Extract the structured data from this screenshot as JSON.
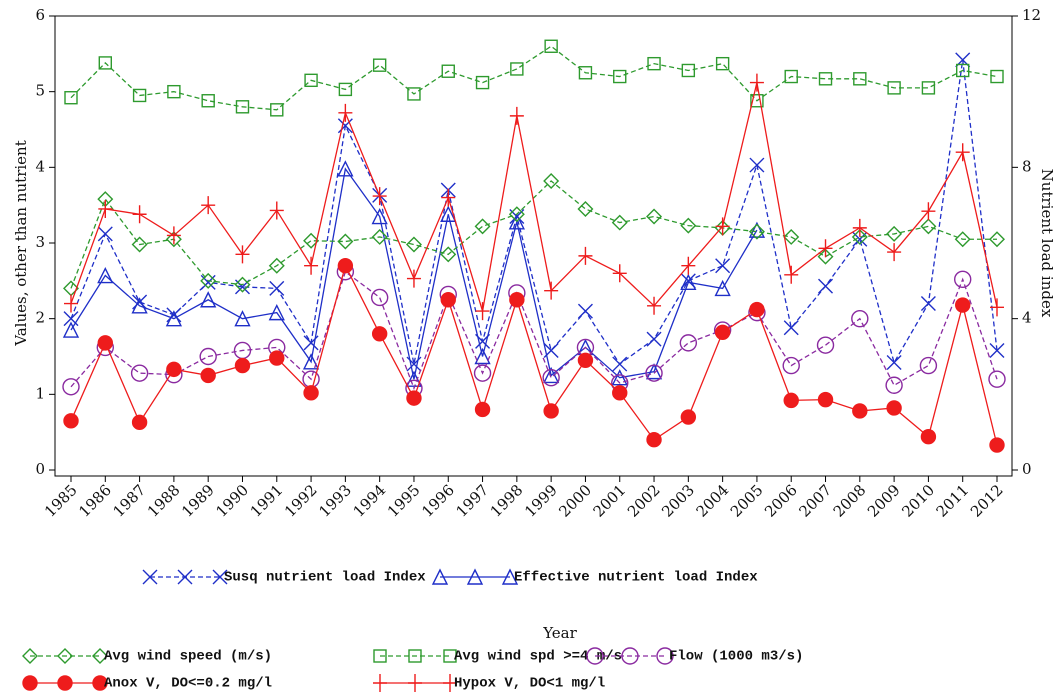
{
  "chart_data": {
    "type": "line",
    "x_label": "Year",
    "y_label": "Values, other than nutrient",
    "y2_label": "Nutrient load index",
    "categories": [
      "1985",
      "1986",
      "1987",
      "1988",
      "1989",
      "1990",
      "1991",
      "1992",
      "1993",
      "1994",
      "1995",
      "1996",
      "1997",
      "1998",
      "1999",
      "2000",
      "2001",
      "2002",
      "2003",
      "2004",
      "2005",
      "2006",
      "2007",
      "2008",
      "2009",
      "2010",
      "2011",
      "2012"
    ],
    "ylim": [
      0,
      6
    ],
    "yticks": [
      0,
      1,
      2,
      3,
      4,
      5,
      6
    ],
    "y2lim": [
      0,
      12
    ],
    "y2ticks": [
      0,
      4,
      8,
      12
    ],
    "series": [
      {
        "name": "Susq nutrient load Index",
        "color": "#1f2fc8",
        "marker": "x",
        "dashed": true,
        "axis": "y2",
        "values": [
          4.0,
          6.24,
          4.44,
          4.1,
          4.96,
          4.84,
          4.8,
          3.36,
          9.1,
          7.26,
          2.8,
          7.4,
          3.4,
          6.7,
          3.16,
          4.2,
          2.8,
          3.46,
          5.0,
          5.4,
          8.06,
          3.76,
          4.86,
          6.1,
          2.84,
          4.4,
          10.84,
          3.16
        ]
      },
      {
        "name": "Effective nutrient load Index",
        "color": "#1f2fc8",
        "marker": "triangle",
        "dashed": false,
        "axis": "y2",
        "values": [
          3.7,
          5.14,
          4.34,
          4.0,
          4.5,
          4.0,
          4.16,
          2.86,
          7.96,
          6.7,
          2.4,
          6.76,
          3.0,
          6.56,
          2.5,
          3.24,
          2.44,
          2.6,
          4.96,
          4.8,
          6.34,
          null,
          null,
          null,
          null,
          null,
          null,
          null
        ]
      },
      {
        "name": "Avg wind speed (m/s)",
        "color": "#2e9a2e",
        "marker": "diamond",
        "dashed": true,
        "values": [
          2.4,
          3.58,
          2.98,
          3.05,
          2.5,
          2.45,
          2.7,
          3.03,
          3.02,
          3.08,
          2.98,
          2.85,
          3.22,
          3.38,
          3.82,
          3.45,
          3.27,
          3.35,
          3.23,
          3.2,
          3.15,
          3.08,
          2.82,
          3.08,
          3.12,
          3.22,
          3.05,
          3.05
        ]
      },
      {
        "name": "Avg wind spd >=4 m/s",
        "color": "#2e9a2e",
        "marker": "square",
        "dashed": true,
        "values": [
          4.92,
          5.38,
          4.95,
          5.0,
          4.88,
          4.8,
          4.76,
          5.15,
          5.03,
          5.35,
          4.97,
          5.27,
          5.12,
          5.3,
          5.6,
          5.25,
          5.2,
          5.37,
          5.28,
          5.37,
          4.88,
          5.2,
          5.17,
          5.17,
          5.05,
          5.05,
          5.28,
          5.2
        ]
      },
      {
        "name": "Flow (1000 m3/s)",
        "color": "#8a2aa0",
        "marker": "circle",
        "dashed": true,
        "values": [
          1.1,
          1.62,
          1.28,
          1.26,
          1.5,
          1.58,
          1.62,
          1.2,
          2.62,
          2.28,
          1.08,
          2.32,
          1.28,
          2.34,
          1.22,
          1.62,
          1.15,
          1.28,
          1.68,
          1.85,
          2.08,
          1.38,
          1.65,
          2.0,
          1.12,
          1.38,
          2.52,
          1.2
        ]
      },
      {
        "name": "Anox V, DO<=0.2 mg/l",
        "color": "#ee1c1c",
        "marker": "dot",
        "dashed": false,
        "values": [
          0.65,
          1.68,
          0.63,
          1.33,
          1.25,
          1.38,
          1.48,
          1.02,
          2.7,
          1.8,
          0.95,
          2.25,
          0.8,
          2.25,
          0.78,
          1.45,
          1.02,
          0.4,
          0.7,
          1.82,
          2.12,
          0.92,
          0.93,
          0.78,
          0.82,
          0.44,
          2.18,
          0.33
        ]
      },
      {
        "name": "Hypox V, DO<1 mg/l",
        "color": "#ee1c1c",
        "marker": "plus",
        "dashed": false,
        "values": [
          2.2,
          3.45,
          3.38,
          3.1,
          3.5,
          2.85,
          3.43,
          2.7,
          4.72,
          3.62,
          2.53,
          3.6,
          2.1,
          4.68,
          2.37,
          2.83,
          2.6,
          2.17,
          2.7,
          3.22,
          5.12,
          2.58,
          2.93,
          3.2,
          2.88,
          3.42,
          4.2,
          2.15
        ]
      }
    ]
  }
}
